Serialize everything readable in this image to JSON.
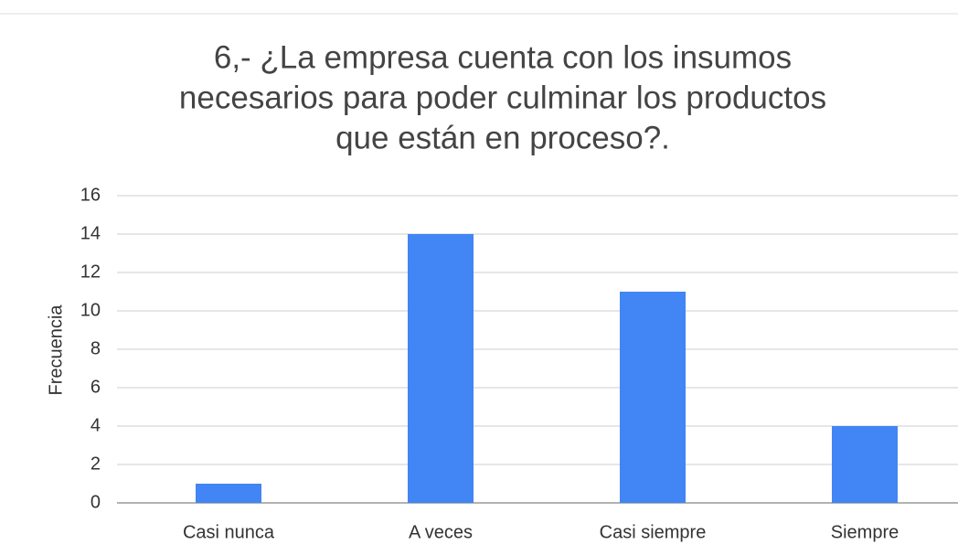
{
  "chart_data": {
    "type": "bar",
    "title": [
      "6,- ¿La empresa cuenta con los insumos",
      "necesarios para poder culminar los productos",
      "que están en proceso?."
    ],
    "y_label": "Frecuencia",
    "categories": [
      "Casi nunca",
      "A veces",
      "Casi siempre",
      "Siempre"
    ],
    "values": [
      1,
      14,
      11,
      4
    ],
    "color": "#4285f4",
    "ylim": [
      0,
      16
    ],
    "yticks": [
      0,
      2,
      4,
      6,
      8,
      10,
      12,
      14,
      16
    ],
    "grid": true
  }
}
